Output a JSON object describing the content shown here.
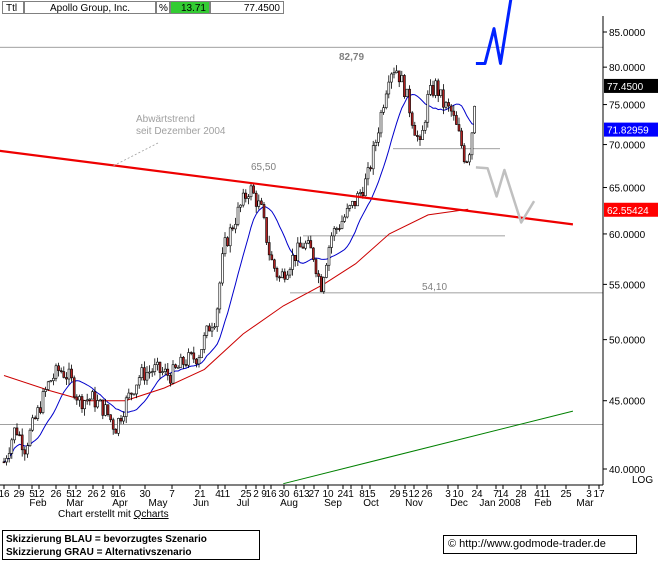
{
  "header": {
    "symbol": "Ttl",
    "company": "Apollo Group, Inc.",
    "pct_label": "%",
    "pct_value": "13.71",
    "last_price": "77.4500"
  },
  "credit": {
    "prefix": "Chart erstellt mit ",
    "tool": "Qcharts"
  },
  "legend": {
    "line1": "Skizzierung BLAU = bevorzugtes Szenario",
    "line2": "Skizzierung GRAU = Alternativszenario"
  },
  "source": {
    "copyright": "©",
    "url": "http://www.godmode-trader.de"
  },
  "colors": {
    "candle_up": "#ffffff",
    "candle_down": "#b22222",
    "ma_fast": "#0000cc",
    "ma_slow": "#cc0000",
    "trendline": "#ee0000",
    "support": "#008000",
    "scenario_blue": "#0022ff",
    "scenario_grey": "#c0c0c0",
    "label_blue_bg": "#0000ff",
    "label_red_bg": "#ff0000"
  },
  "chart_data": {
    "type": "candlestick",
    "scale": "log",
    "scale_label": "LOG",
    "ylim": [
      39,
      90
    ],
    "y_ticks": [
      {
        "value": 40,
        "label": "40.0000"
      },
      {
        "value": 45,
        "label": "45.0000"
      },
      {
        "value": 50,
        "label": "50.0000"
      },
      {
        "value": 55,
        "label": "55.0000"
      },
      {
        "value": 60,
        "label": "60.0000"
      },
      {
        "value": 65,
        "label": "65.0000"
      },
      {
        "value": 70,
        "label": "70.0000"
      },
      {
        "value": 75,
        "label": "75.0000"
      },
      {
        "value": 80,
        "label": "80.0000"
      },
      {
        "value": 85,
        "label": "85.0000"
      }
    ],
    "day_ticks": [
      "16",
      "29",
      "5",
      "12",
      "26",
      "5",
      "12",
      "26",
      "2",
      "9",
      "16",
      "30",
      "7",
      "21",
      "4",
      "11",
      "25",
      "2",
      "9",
      "16",
      "30",
      "6",
      "13",
      "27",
      "10",
      "24",
      "1",
      "8",
      "15",
      "29",
      "5",
      "12",
      "26",
      "3",
      "10",
      "24",
      "7",
      "14",
      "28",
      "4",
      "11",
      "25",
      "3",
      "17"
    ],
    "month_labels": [
      "Feb",
      "Mar",
      "Apr",
      "May",
      "Jun",
      "Jul",
      "Aug",
      "Sep",
      "Oct",
      "Nov",
      "Dec",
      "Jan 2008",
      "Feb",
      "Mar"
    ],
    "price_labels": [
      {
        "value": 77.45,
        "text": "77.4500",
        "kind": "last"
      },
      {
        "value": 71.82959,
        "text": "71.82959",
        "kind": "ma_fast"
      },
      {
        "value": 62.55424,
        "text": "62.55424",
        "kind": "ma_slow"
      }
    ],
    "annotations": [
      {
        "text": "82,79",
        "price": 82.79
      },
      {
        "text": "65,50",
        "price": 65.5
      },
      {
        "text": "54,10",
        "price": 54.1
      },
      {
        "text": "Abwärtstrend",
        "note": "trend"
      },
      {
        "text": "seit Dezember 2004",
        "note": "trend"
      }
    ],
    "horizontal_levels": [
      82.79,
      69.5,
      59.8,
      54.2,
      43.2
    ],
    "key_points": {
      "start_2007": 40.5,
      "april_low": 42.8,
      "june_close": 52.0,
      "july_high": 65.5,
      "aug_low": 54.1,
      "sep_low": 54.1,
      "oct_close": 66.0,
      "nov_high": 80.8,
      "dec_low": 69.0,
      "jan_low": 67.3,
      "last": 77.45
    },
    "scenario_blue": [
      {
        "date": "2008-01-16",
        "price": 80.5
      },
      {
        "date": "2008-01-23",
        "price": 80.5
      },
      {
        "date": "2008-01-30",
        "price": 85.5
      },
      {
        "date": "2008-02-04",
        "price": 80.5
      },
      {
        "date": "2008-02-12",
        "price": 90.0
      }
    ],
    "scenario_grey": [
      {
        "date": "2008-01-16",
        "price": 67.3
      },
      {
        "date": "2008-01-25",
        "price": 67.2
      },
      {
        "date": "2008-02-01",
        "price": 64.0
      },
      {
        "date": "2008-02-07",
        "price": 67.0
      },
      {
        "date": "2008-02-20",
        "price": 61.2
      },
      {
        "date": "2008-03-01",
        "price": 63.5
      }
    ],
    "trendlines": [
      {
        "name": "downtrend",
        "from": {
          "date": "2007-01-10",
          "price": 69.3
        },
        "to": {
          "date": "2008-03-31",
          "price": 61.0
        }
      },
      {
        "name": "support",
        "from": {
          "date": "2007-08-20",
          "price": 39.0
        },
        "to": {
          "date": "2008-03-31",
          "price": 44.2
        }
      }
    ]
  }
}
